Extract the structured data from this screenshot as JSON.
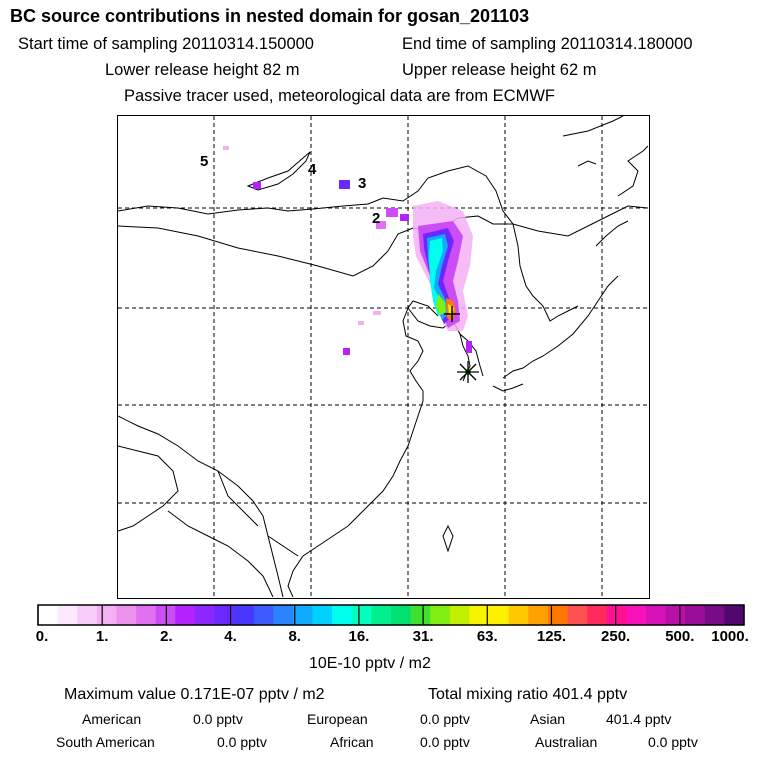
{
  "header": {
    "title": "BC  source contributions in nested domain for gosan_201103",
    "start_time": "Start time of sampling 20110314.150000",
    "end_time": "End time of sampling 20110314.180000",
    "lower_height": "Lower release height   82 m",
    "upper_height": "Upper release height   62 m",
    "tracer_note": "Passive tracer used, meteorological data are from ECMWF"
  },
  "map": {
    "trajectory_labels": [
      "5",
      "4",
      "3",
      "2"
    ]
  },
  "colorbar": {
    "colors": [
      "#ffffff",
      "#fde8fd",
      "#f8ccf8",
      "#f3b0f3",
      "#ee90ee",
      "#e070f0",
      "#cc4cf6",
      "#b422ff",
      "#8c28ff",
      "#6a28ff",
      "#4838ff",
      "#3c5cff",
      "#2a84ff",
      "#10aaff",
      "#00d2ff",
      "#00ffee",
      "#00ffc0",
      "#00f090",
      "#00e070",
      "#40e030",
      "#80ee10",
      "#c0f000",
      "#f8f400",
      "#fff000",
      "#ffc800",
      "#ffa000",
      "#ff7800",
      "#ff5050",
      "#ff2a5a",
      "#ff1090",
      "#f810b8",
      "#d810b8",
      "#b810a8",
      "#980c98",
      "#780c88",
      "#500870"
    ],
    "ticks": [
      "0.",
      "1.",
      "2.",
      "4.",
      "8.",
      "16.",
      "31.",
      "63.",
      "125.",
      "250.",
      "500.",
      "1000."
    ],
    "units": "10E-10 pptv / m2"
  },
  "summary": {
    "maximum_value": "Maximum value  0.171E-07 pptv / m2",
    "total_mixing": "Total mixing ratio      401.4 pptv",
    "american_label": "American",
    "american_value": "0.0 pptv",
    "european_label": "European",
    "european_value": "0.0 pptv",
    "asian_label": "Asian",
    "asian_value": "401.4 pptv",
    "south_american_label": "South American",
    "south_american_value": "0.0 pptv",
    "african_label": "African",
    "african_value": "0.0 pptv",
    "australian_label": "Australian",
    "australian_value": "0.0 pptv"
  }
}
